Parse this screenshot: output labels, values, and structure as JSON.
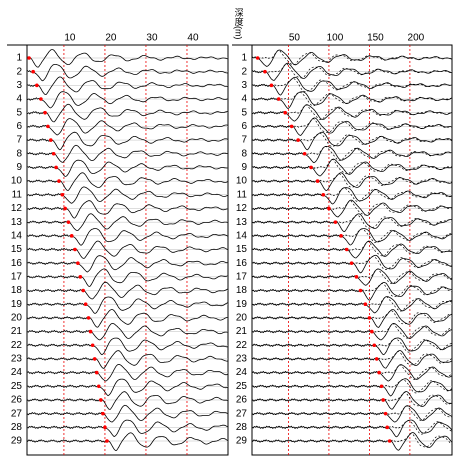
{
  "chart_data": [
    {
      "type": "seismogram",
      "categories": [
        1,
        2,
        3,
        4,
        5,
        6,
        7,
        8,
        9,
        10,
        11,
        12,
        13,
        14,
        15,
        16,
        17,
        18,
        19,
        20,
        21,
        22,
        23,
        24,
        25,
        26,
        27,
        28,
        29
      ],
      "values": [
        1.5,
        2.5,
        3.4,
        4.4,
        5.4,
        6.1,
        6.8,
        7.5,
        8.1,
        8.8,
        9.6,
        10.3,
        11.1,
        11.9,
        12.7,
        13.4,
        14.0,
        14.7,
        15.3,
        16.0,
        16.5,
        17.0,
        17.5,
        18.0,
        18.5,
        19.0,
        19.5,
        20.0,
        20.5
      ],
      "color": "#ff0000",
      "xlim": [
        1,
        50
      ],
      "xticks": [
        10,
        20,
        30,
        40
      ],
      "grid": true
    },
    {
      "type": "seismogram",
      "y_label": "深度(m)",
      "categories": [
        1,
        2,
        3,
        4,
        5,
        6,
        7,
        8,
        9,
        10,
        11,
        12,
        13,
        14,
        15,
        16,
        17,
        18,
        19,
        20,
        21,
        22,
        23,
        24,
        25,
        26,
        27,
        28,
        29
      ],
      "values": [
        12,
        21,
        29,
        38,
        46,
        54,
        62,
        70,
        78,
        86,
        93,
        100,
        108,
        115,
        122,
        128,
        134,
        139,
        145,
        150,
        153,
        156,
        159,
        162,
        165,
        167,
        170,
        172,
        175
      ],
      "color": "#ff0000",
      "xlim": [
        5,
        252
      ],
      "xticks": [
        50,
        100,
        150,
        200
      ],
      "grid": true,
      "dashed_component": true
    }
  ]
}
